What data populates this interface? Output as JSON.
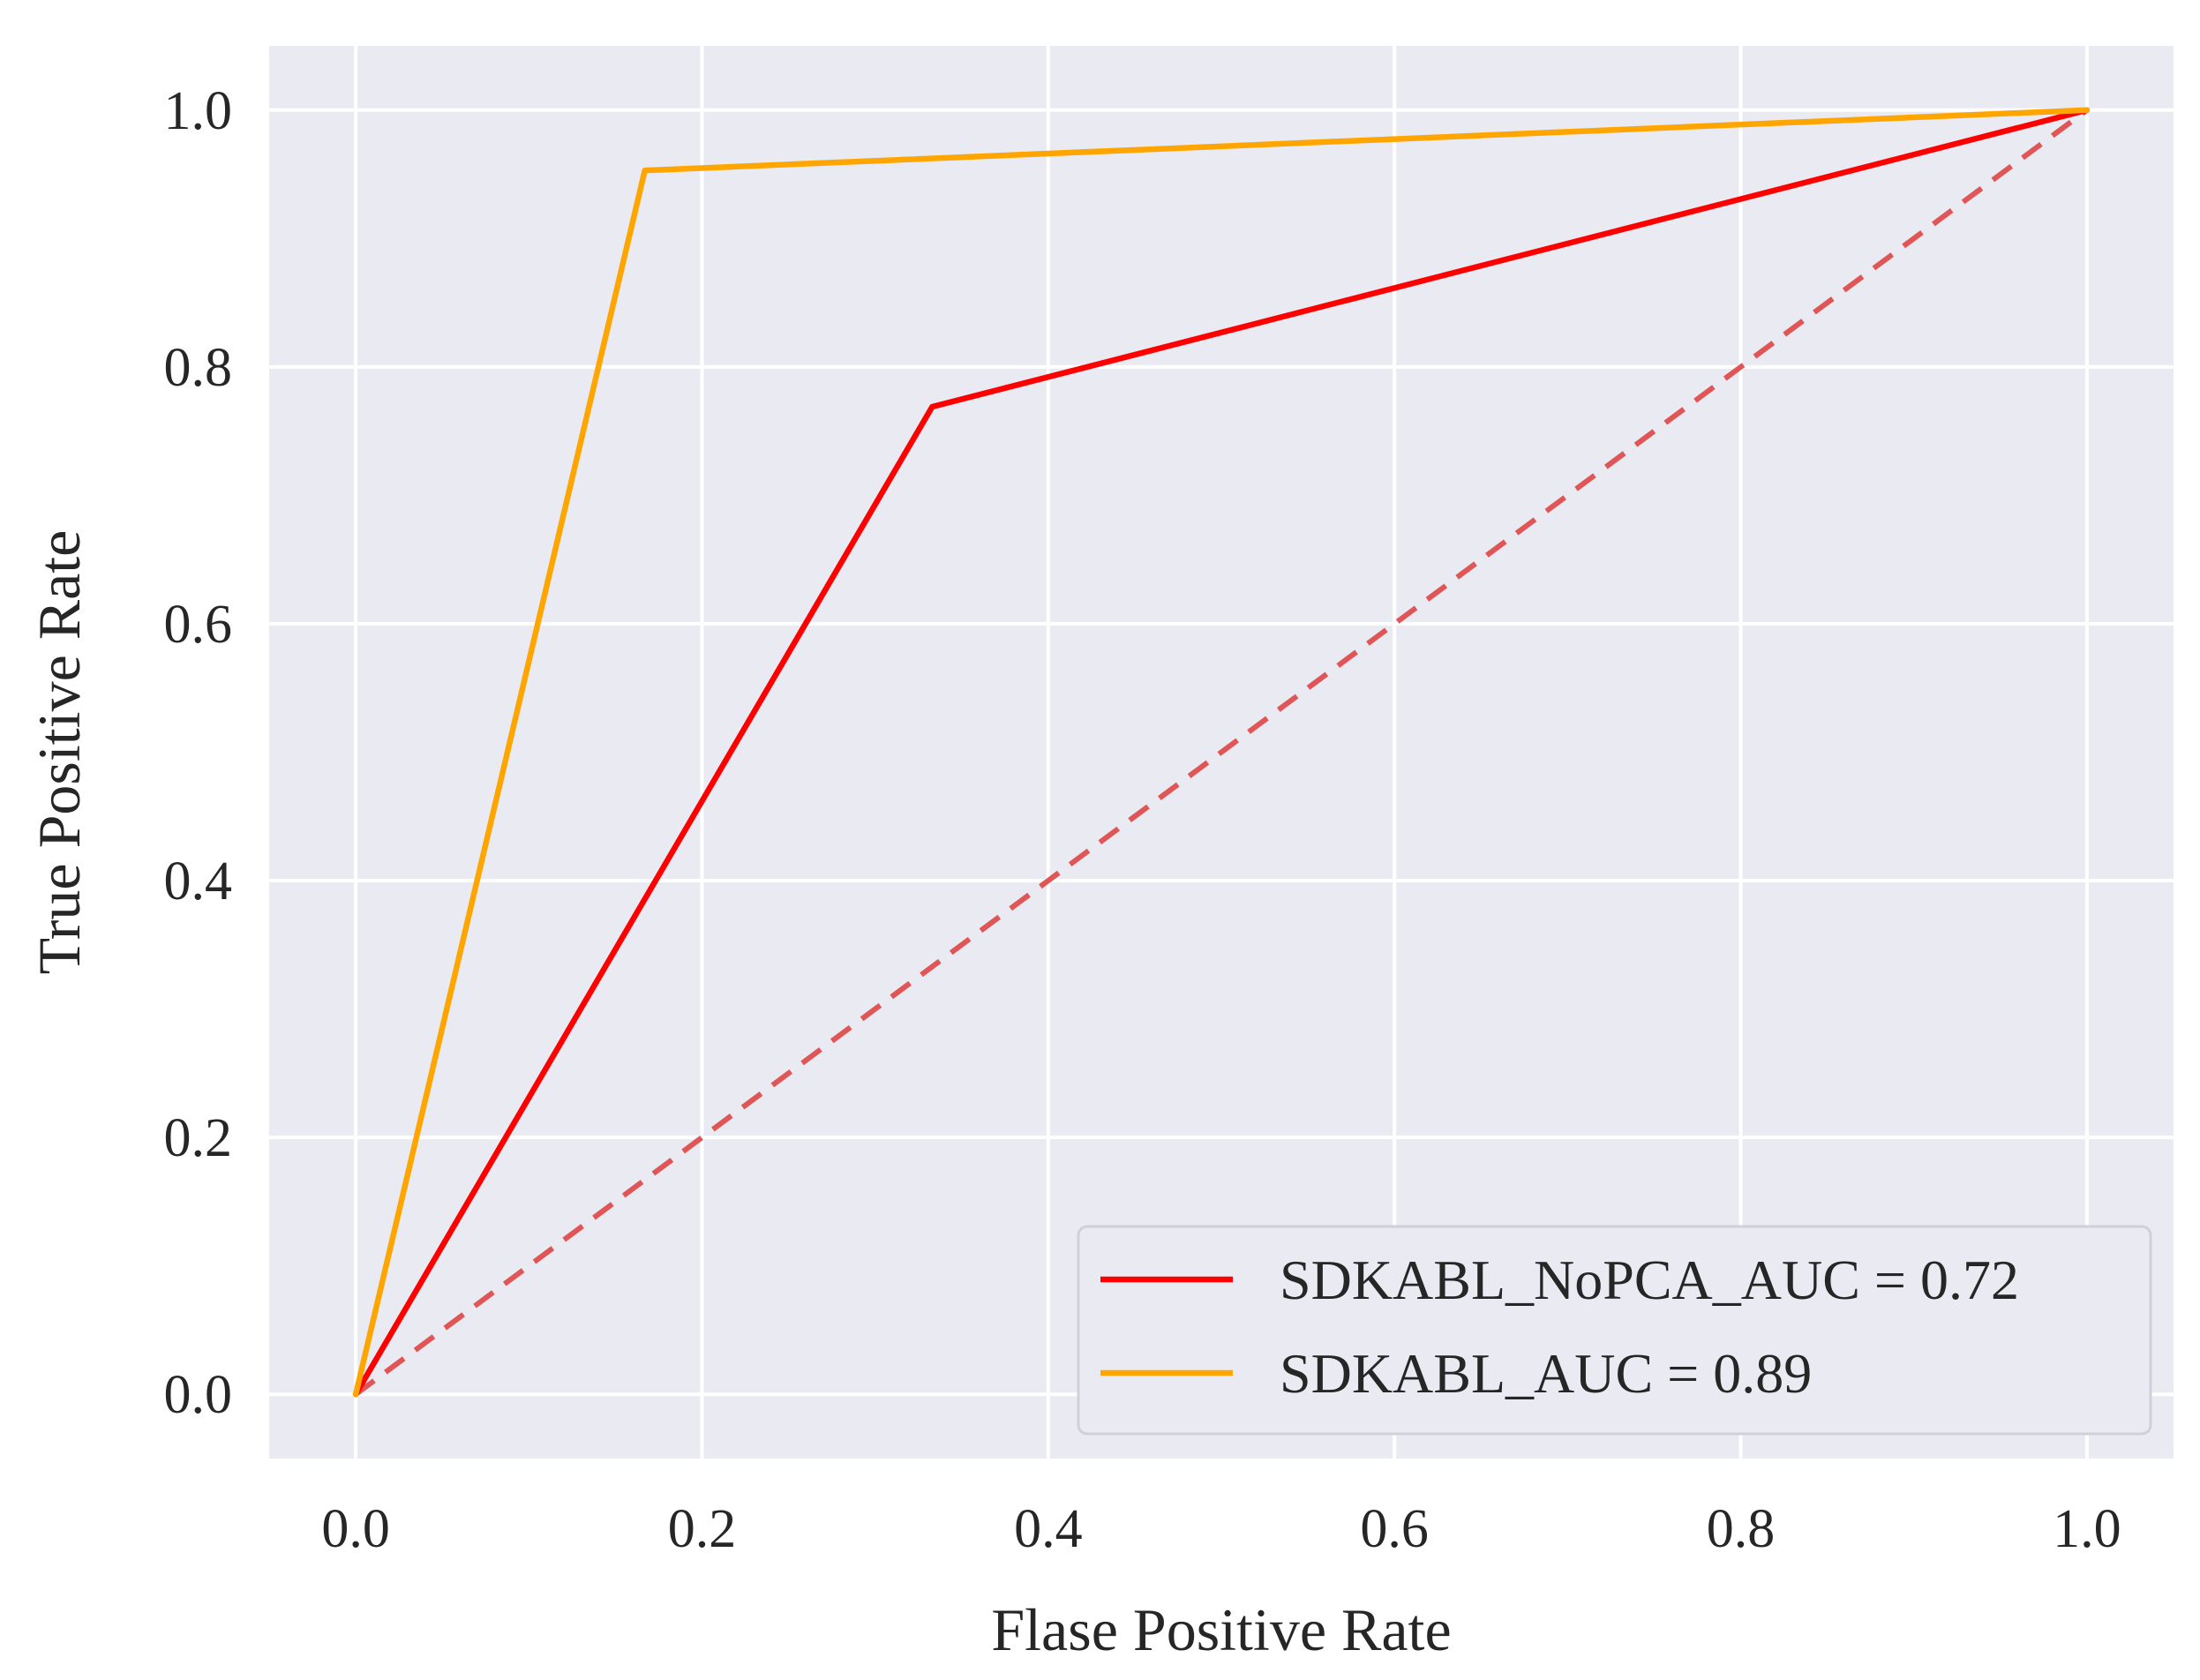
{
  "chart_data": {
    "type": "line",
    "title": "",
    "xlabel": "Flase Positive Rate",
    "ylabel": "True Positive Rate",
    "xlim": [
      -0.05,
      1.05
    ],
    "ylim": [
      -0.05,
      1.05
    ],
    "xticks": [
      0.0,
      0.2,
      0.4,
      0.6,
      0.8,
      1.0
    ],
    "yticks": [
      0.0,
      0.2,
      0.4,
      0.6,
      0.8,
      1.0
    ],
    "xtick_labels": [
      "0.0",
      "0.2",
      "0.4",
      "0.6",
      "0.8",
      "1.0"
    ],
    "ytick_labels": [
      "0.0",
      "0.2",
      "0.4",
      "0.6",
      "0.8",
      "1.0"
    ],
    "grid": true,
    "background": "#eaeaf2",
    "grid_color": "#ffffff",
    "legend_position": "lower-right",
    "series": [
      {
        "name": "SDKABL_NoPCA_AUC = 0.72",
        "color": "#ff0000",
        "style": "solid",
        "x": [
          0.0,
          0.333,
          1.0
        ],
        "y": [
          0.0,
          0.769,
          1.0
        ]
      },
      {
        "name": "SDKABL_AUC = 0.89",
        "color": "#ffa500",
        "style": "solid",
        "x": [
          0.0,
          0.167,
          1.0
        ],
        "y": [
          0.0,
          0.953,
          1.0
        ]
      }
    ],
    "reference_line": {
      "color": "#e05555",
      "style": "dashed",
      "x": [
        0.0,
        1.0
      ],
      "y": [
        0.0,
        1.0
      ]
    }
  }
}
